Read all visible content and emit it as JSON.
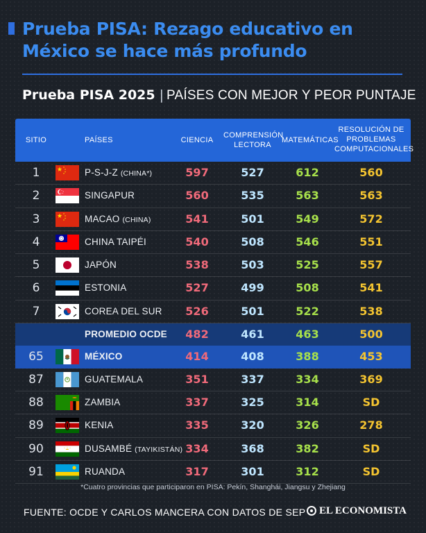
{
  "headline": "Prueba PISA: Rezago educativo en México se hace más profundo",
  "subtitle": {
    "strong": "Prueba PISA 2025",
    "light": "PAÍSES CON MEJOR Y PEOR PUNTAJE"
  },
  "chart_data": {
    "type": "table",
    "columns": {
      "sitio": "SITIO",
      "paises": "PAÍSES",
      "ciencia": "CIENCIA",
      "lectura": "COMPRENSIÓN LECTORA",
      "matematicas": "MATEMÁTICAS",
      "resolucion": "RESOLUCIÓN DE PROBLEMAS COMPUTACIONALES"
    },
    "rows": [
      {
        "rank": "1",
        "country": "P-S-J-Z",
        "note": "(CHINA*)",
        "flag": "china",
        "ciencia": "597",
        "lectura": "527",
        "mate": "612",
        "reso": "560"
      },
      {
        "rank": "2",
        "country": "SINGAPUR",
        "note": "",
        "flag": "singapore",
        "ciencia": "560",
        "lectura": "535",
        "mate": "563",
        "reso": "563"
      },
      {
        "rank": "3",
        "country": "MACAO",
        "note": "(CHINA)",
        "flag": "china",
        "ciencia": "541",
        "lectura": "501",
        "mate": "549",
        "reso": "572"
      },
      {
        "rank": "4",
        "country": "CHINA TAIPÉI",
        "note": "",
        "flag": "taiwan",
        "ciencia": "540",
        "lectura": "508",
        "mate": "546",
        "reso": "551"
      },
      {
        "rank": "5",
        "country": "JAPÓN",
        "note": "",
        "flag": "japan",
        "ciencia": "538",
        "lectura": "503",
        "mate": "525",
        "reso": "557"
      },
      {
        "rank": "6",
        "country": "ESTONIA",
        "note": "",
        "flag": "estonia",
        "ciencia": "527",
        "lectura": "499",
        "mate": "508",
        "reso": "541"
      },
      {
        "rank": "7",
        "country": "COREA DEL SUR",
        "note": "",
        "flag": "korea",
        "ciencia": "526",
        "lectura": "501",
        "mate": "522",
        "reso": "538"
      },
      {
        "rank": "",
        "country": "PROMEDIO OCDE",
        "note": "",
        "flag": "",
        "style": "avg",
        "ciencia": "482",
        "lectura": "461",
        "mate": "463",
        "reso": "500"
      },
      {
        "rank": "65",
        "country": "MÉXICO",
        "note": "",
        "flag": "mexico",
        "style": "mex",
        "ciencia": "414",
        "lectura": "408",
        "mate": "388",
        "reso": "453"
      },
      {
        "rank": "87",
        "country": "GUATEMALA",
        "note": "",
        "flag": "guatemala",
        "ciencia": "351",
        "lectura": "337",
        "mate": "334",
        "reso": "369"
      },
      {
        "rank": "88",
        "country": "ZAMBIA",
        "note": "",
        "flag": "zambia",
        "ciencia": "337",
        "lectura": "325",
        "mate": "314",
        "reso": "SD"
      },
      {
        "rank": "89",
        "country": "KENIA",
        "note": "",
        "flag": "kenya",
        "ciencia": "335",
        "lectura": "320",
        "mate": "326",
        "reso": "278"
      },
      {
        "rank": "90",
        "country": "DUSAMBÉ",
        "note": "(TAYIKISTÁN)",
        "flag": "tajikistan",
        "ciencia": "334",
        "lectura": "368",
        "mate": "382",
        "reso": "SD"
      },
      {
        "rank": "91",
        "country": "RUANDA",
        "note": "",
        "flag": "rwanda",
        "ciencia": "317",
        "lectura": "301",
        "mate": "312",
        "reso": "SD"
      }
    ]
  },
  "footnote": "*Cuatro provincias que participaron en PISA: Pekín, Shanghái, Jiangsu y Zhejiang",
  "source": "FUENTE: OCDE Y CARLOS MANCERA CON DATOS DE SEP",
  "brand": "EL ECONOMISTA"
}
